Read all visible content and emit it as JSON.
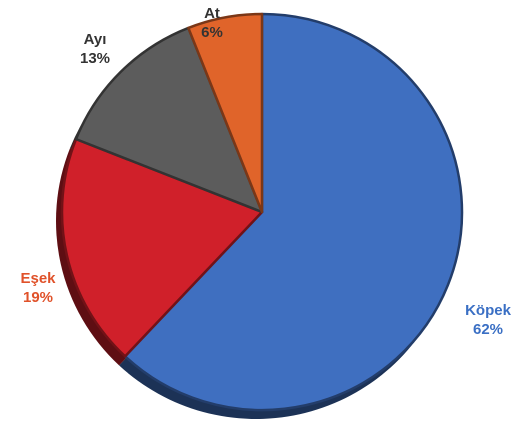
{
  "chart_data": {
    "type": "pie",
    "title": "",
    "slices": [
      {
        "label": "Köpek",
        "value": 62,
        "display": "62%",
        "color": "#3f6fc0",
        "label_color": "#3a6fc4"
      },
      {
        "label": "Eşek",
        "value": 19,
        "display": "19%",
        "color": "#d0202a",
        "label_color": "#e0522a"
      },
      {
        "label": "Ayı",
        "value": 13,
        "display": "13%",
        "color": "#5c5c5c",
        "label_color": "#333333"
      },
      {
        "label": "At",
        "value": 6,
        "display": "6%",
        "color": "#e0642a",
        "label_color": "#333333"
      }
    ],
    "start_angle_deg": 0,
    "direction": "clockwise",
    "legend": "none",
    "style": "3d-shaded"
  }
}
